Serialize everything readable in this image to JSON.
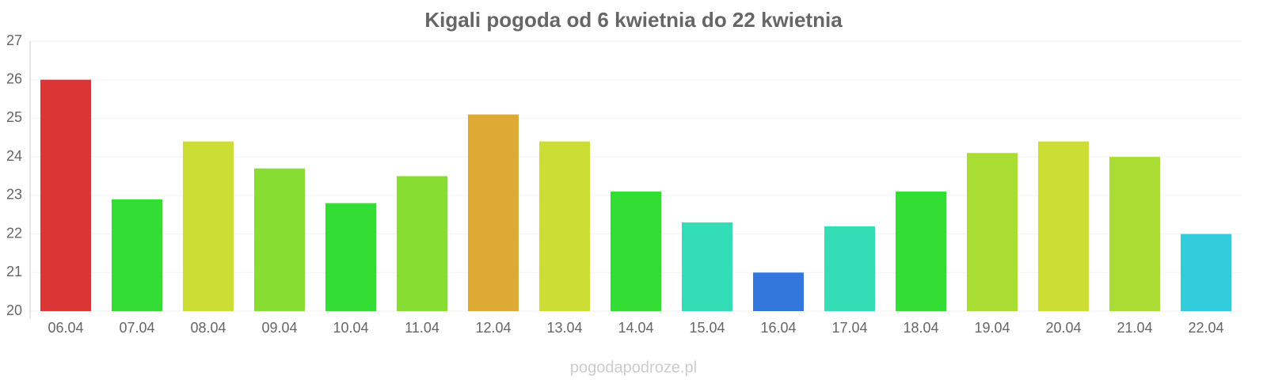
{
  "chart_data": {
    "type": "bar",
    "title": "Kigali pogoda od 6 kwietnia do 22 kwietnia",
    "source": "pogodapodroze.pl",
    "categories": [
      "06.04",
      "07.04",
      "08.04",
      "09.04",
      "10.04",
      "11.04",
      "12.04",
      "13.04",
      "14.04",
      "15.04",
      "16.04",
      "17.04",
      "18.04",
      "19.04",
      "20.04",
      "21.04",
      "22.04"
    ],
    "values": [
      26.0,
      22.9,
      24.4,
      23.7,
      22.8,
      23.5,
      25.1,
      24.4,
      23.1,
      22.3,
      21.0,
      22.2,
      23.1,
      24.1,
      24.4,
      24.0,
      22.0
    ],
    "colors": [
      "#dc3535",
      "#33dd33",
      "#ccdd33",
      "#88dd33",
      "#33dd33",
      "#88dd33",
      "#ddaa33",
      "#ccdd33",
      "#33dd33",
      "#33ddb5",
      "#3377dd",
      "#33ddb5",
      "#33dd33",
      "#aadd33",
      "#ccdd33",
      "#aadd33",
      "#33ccdd"
    ],
    "ylim": [
      20,
      27
    ],
    "yticks": [
      20,
      21,
      22,
      23,
      24,
      25,
      26,
      27
    ],
    "grid": true
  }
}
